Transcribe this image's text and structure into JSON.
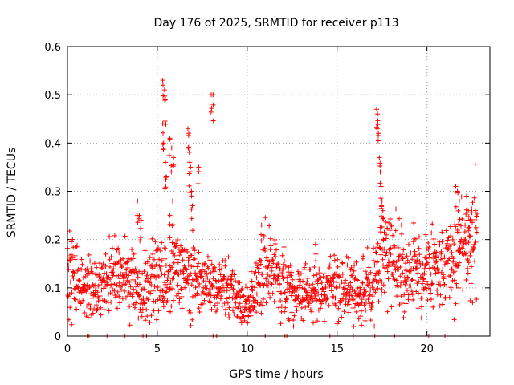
{
  "chart_data": {
    "type": "scatter",
    "title": "Day 176 of 2025, SRMTID for receiver p113",
    "xlabel": "GPS time / hours",
    "ylabel": "SRMTID / TECUs",
    "xlim": [
      0,
      23.5
    ],
    "ylim": [
      0,
      0.6
    ],
    "xticks": [
      0,
      5,
      10,
      15,
      20
    ],
    "xtick_labels": [
      "0",
      "5",
      "10",
      "15",
      "20"
    ],
    "yticks": [
      0,
      0.1,
      0.2,
      0.3,
      0.4,
      0.5,
      0.6
    ],
    "ytick_labels": [
      "0",
      "0.1",
      "0.2",
      "0.3",
      "0.4",
      "0.5",
      "0.6"
    ],
    "grid": true,
    "marker": "plus",
    "marker_color": "#ff0000",
    "series": [
      {
        "name": "SRMTID",
        "baseline": [
          [
            0.0,
            0.14
          ],
          [
            0.5,
            0.13
          ],
          [
            1.0,
            0.11
          ],
          [
            1.5,
            0.1
          ],
          [
            2.0,
            0.11
          ],
          [
            2.5,
            0.12
          ],
          [
            3.0,
            0.12
          ],
          [
            3.5,
            0.11
          ],
          [
            4.0,
            0.08
          ],
          [
            4.5,
            0.11
          ],
          [
            5.0,
            0.13
          ],
          [
            5.5,
            0.11
          ],
          [
            6.0,
            0.14
          ],
          [
            6.5,
            0.12
          ],
          [
            7.0,
            0.13
          ],
          [
            7.5,
            0.11
          ],
          [
            8.0,
            0.1
          ],
          [
            8.5,
            0.11
          ],
          [
            9.0,
            0.09
          ],
          [
            9.5,
            0.07
          ],
          [
            10.0,
            0.06
          ],
          [
            10.5,
            0.09
          ],
          [
            11.0,
            0.16
          ],
          [
            11.5,
            0.13
          ],
          [
            12.0,
            0.11
          ],
          [
            12.5,
            0.09
          ],
          [
            13.0,
            0.09
          ],
          [
            13.5,
            0.09
          ],
          [
            14.0,
            0.09
          ],
          [
            14.5,
            0.1
          ],
          [
            15.0,
            0.11
          ],
          [
            15.5,
            0.1
          ],
          [
            16.0,
            0.1
          ],
          [
            16.5,
            0.1
          ],
          [
            17.0,
            0.11
          ],
          [
            17.5,
            0.17
          ],
          [
            18.0,
            0.16
          ],
          [
            18.5,
            0.14
          ],
          [
            19.0,
            0.13
          ],
          [
            19.5,
            0.13
          ],
          [
            20.0,
            0.14
          ],
          [
            20.5,
            0.15
          ],
          [
            21.0,
            0.13
          ],
          [
            21.5,
            0.15
          ],
          [
            22.0,
            0.19
          ],
          [
            22.5,
            0.2
          ],
          [
            22.8,
            0.21
          ]
        ],
        "spikes": [
          [
            3.9,
            0.28
          ],
          [
            4.0,
            0.25
          ],
          [
            4.1,
            0.24
          ],
          [
            5.3,
            0.53
          ],
          [
            5.4,
            0.51
          ],
          [
            5.45,
            0.49
          ],
          [
            5.3,
            0.44
          ],
          [
            5.35,
            0.4
          ],
          [
            5.45,
            0.36
          ],
          [
            5.5,
            0.33
          ],
          [
            5.7,
            0.41
          ],
          [
            5.8,
            0.39
          ],
          [
            5.9,
            0.37
          ],
          [
            5.85,
            0.28
          ],
          [
            5.7,
            0.25
          ],
          [
            6.7,
            0.43
          ],
          [
            6.75,
            0.42
          ],
          [
            6.8,
            0.36
          ],
          [
            6.85,
            0.35
          ],
          [
            6.9,
            0.3
          ],
          [
            6.95,
            0.27
          ],
          [
            7.3,
            0.35
          ],
          [
            8.0,
            0.5
          ],
          [
            8.1,
            0.5
          ],
          [
            17.2,
            0.47
          ],
          [
            17.25,
            0.46
          ],
          [
            17.3,
            0.42
          ],
          [
            17.35,
            0.37
          ],
          [
            17.4,
            0.34
          ],
          [
            17.45,
            0.31
          ],
          [
            17.5,
            0.28
          ],
          [
            17.55,
            0.26
          ],
          [
            21.6,
            0.31
          ],
          [
            21.7,
            0.3
          ],
          [
            21.8,
            0.28
          ],
          [
            22.2,
            0.29
          ],
          [
            22.3,
            0.26
          ],
          [
            22.4,
            0.24
          ],
          [
            10.8,
            0.23
          ],
          [
            13.8,
            0.19
          ]
        ],
        "zero_values_x": [
          1.1,
          1.2,
          2.2,
          3.2,
          4.2,
          4.4,
          8.1,
          8.3,
          11.0,
          12.1,
          12.2,
          14.6,
          15.9,
          17.1,
          18.2,
          20.1,
          21.0,
          22.0
        ]
      }
    ]
  }
}
